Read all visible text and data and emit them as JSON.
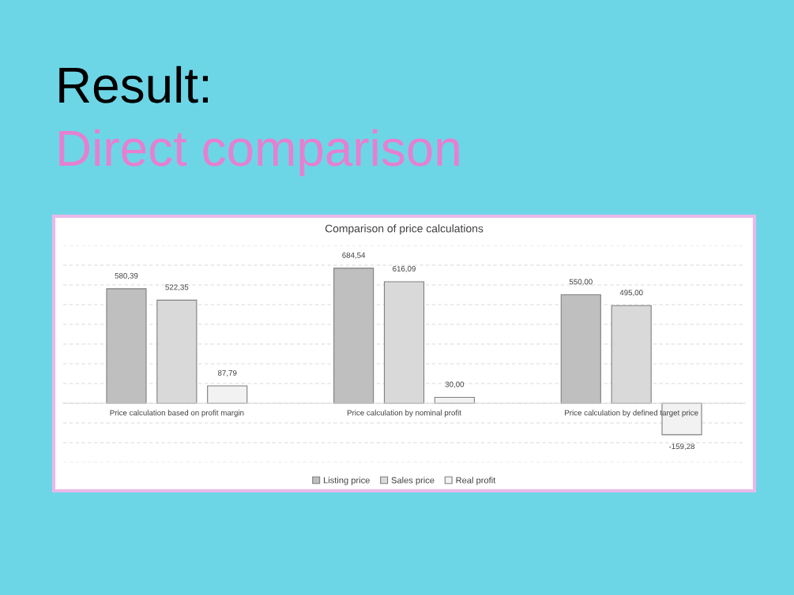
{
  "chart_data": {
    "type": "bar",
    "title": "Comparison of price calculations",
    "annotations": [
      "Result:",
      "Direct comparison"
    ],
    "categories": [
      "Price calculation based on profit margin",
      "Price calculation by nominal profit",
      "Price calculation by defined target price"
    ],
    "series": [
      {
        "name": "Listing price",
        "color": "#bfbfbf",
        "values": [
          580.39,
          684.54,
          550.0
        ],
        "value_labels": [
          "580,39",
          "684,54",
          "550,00"
        ]
      },
      {
        "name": "Sales price",
        "color": "#d9d9d9",
        "values": [
          522.35,
          616.09,
          495.0
        ],
        "value_labels": [
          "522,35",
          "616,09",
          "495,00"
        ]
      },
      {
        "name": "Real profit",
        "color": "#f2f2f2",
        "values": [
          87.79,
          30.0,
          -159.28
        ],
        "value_labels": [
          "87,79",
          "30,00",
          "-159,28"
        ]
      }
    ],
    "ylim": [
      -300,
      800
    ],
    "yticks": [
      {
        "value": -300,
        "label": null
      },
      {
        "value": -200,
        "label": null
      },
      {
        "value": -100,
        "label": null
      },
      {
        "value": 0,
        "label": null
      },
      {
        "value": 100,
        "label": null
      },
      {
        "value": 200,
        "label": null
      },
      {
        "value": 300,
        "label": null
      },
      {
        "value": 400,
        "label": null
      },
      {
        "value": 500,
        "label": null
      },
      {
        "value": 600,
        "label": null
      },
      {
        "value": 700,
        "label": null
      },
      {
        "value": 800,
        "label": null
      }
    ],
    "tick_labels": "x",
    "grid": "y",
    "legend": "bottom"
  }
}
